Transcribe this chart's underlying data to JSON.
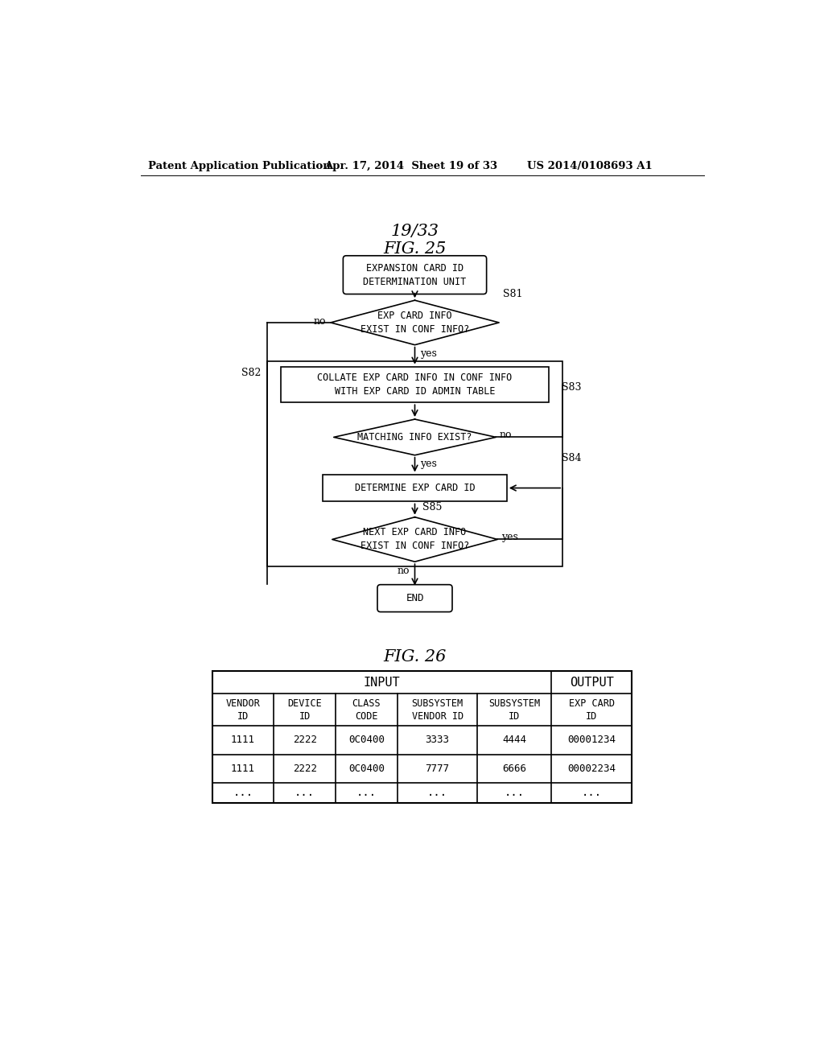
{
  "bg_color": "#ffffff",
  "header_text_left": "Patent Application Publication",
  "header_text_mid": "Apr. 17, 2014  Sheet 19 of 33",
  "header_text_right": "US 2014/0108693 A1",
  "fig_label_top": "19/33",
  "fig_label": "FIG. 25",
  "fig_label2": "FIG. 26",
  "title_shape": "EXPANSION CARD ID\nDETERMINATION UNIT",
  "s81_label": "S81",
  "s82_label": "S82",
  "s83_label": "S83",
  "s84_label": "S84",
  "s85_label": "S85",
  "diamond1_text": "EXP CARD INFO\nEXIST IN CONF INFO?",
  "diamond1_no": "no",
  "diamond1_yes": "yes",
  "rect1_text": "COLLATE EXP CARD INFO IN CONF INFO\nWITH EXP CARD ID ADMIN TABLE",
  "diamond2_text": "MATCHING INFO EXIST?",
  "diamond2_no": "no",
  "diamond2_yes": "yes",
  "rect2_text": "DETERMINE EXP CARD ID",
  "diamond3_text": "NEXT EXP CARD INFO\nEXIST IN CONF INFO?",
  "diamond3_no": "no",
  "diamond3_yes": "yes",
  "end_text": "END",
  "table_col_headers": [
    "VENDOR\nID",
    "DEVICE\nID",
    "CLASS\nCODE",
    "SUBSYSTEM\nVENDOR ID",
    "SUBSYSTEM\nID",
    "EXP CARD\nID"
  ],
  "table_group_input": "INPUT",
  "table_group_output": "OUTPUT",
  "table_row1": [
    "1111",
    "2222",
    "0C0400",
    "3333",
    "4444",
    "00001234"
  ],
  "table_row2": [
    "1111",
    "2222",
    "0C0400",
    "7777",
    "6666",
    "00002234"
  ],
  "table_row3": [
    "...",
    "...",
    "...",
    "...",
    "...",
    "..."
  ]
}
